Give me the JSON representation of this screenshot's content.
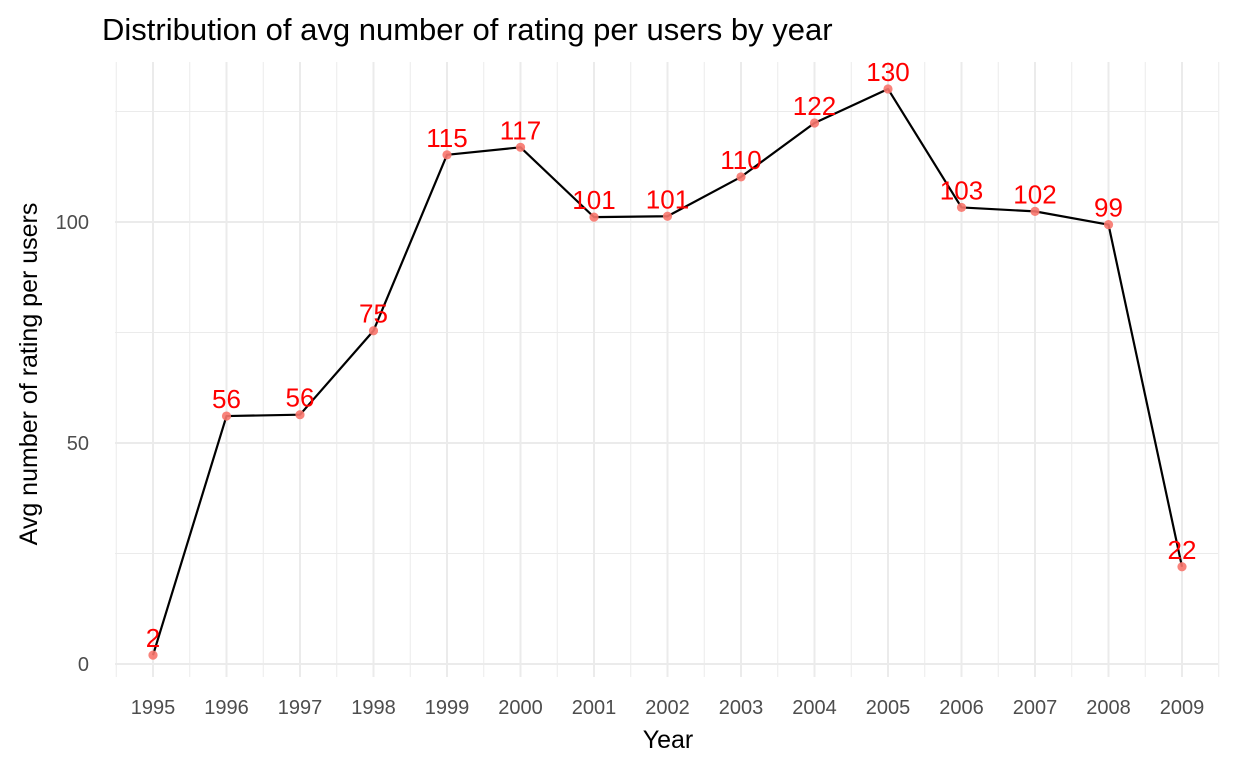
{
  "chart_data": {
    "type": "line",
    "title": "Distribution of avg number of rating per users by year",
    "xlabel": "Year",
    "ylabel": "Avg number of rating per users",
    "categories": [
      "1995",
      "1996",
      "1997",
      "1998",
      "1999",
      "2000",
      "2001",
      "2002",
      "2003",
      "2004",
      "2005",
      "2006",
      "2007",
      "2008",
      "2009"
    ],
    "values": [
      2.0,
      56.1,
      56.4,
      75.4,
      115.2,
      116.9,
      101.1,
      101.3,
      110.2,
      122.4,
      130.1,
      103.3,
      102.4,
      99.4,
      22.0
    ],
    "data_labels": [
      "2",
      "56",
      "56",
      "75",
      "115",
      "117",
      "101",
      "101",
      "110",
      "122",
      "130",
      "103",
      "102",
      "99",
      "22"
    ],
    "y_ticks": [
      0,
      50,
      100
    ],
    "y_tick_labels": [
      "0",
      "50",
      "100"
    ],
    "ylim": [
      -5,
      136
    ],
    "grid": true,
    "legend": "none",
    "colors": {
      "line": "#000000",
      "points": "#f8766d",
      "labels": "#ff0000",
      "grid": "#ebebeb",
      "background": "#ffffff",
      "tick_text": "#4d4d4d"
    }
  }
}
